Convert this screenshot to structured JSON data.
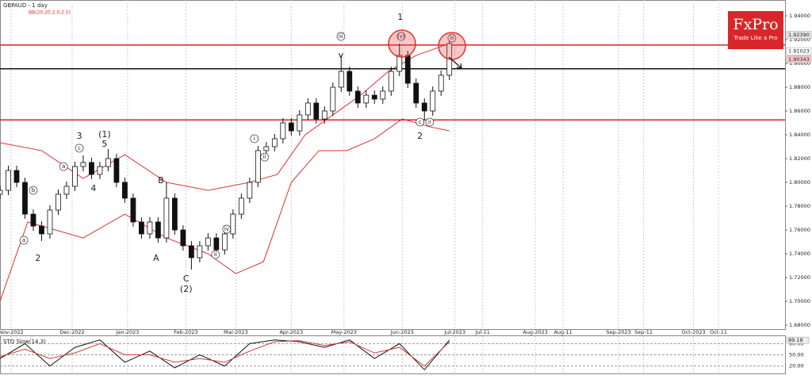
{
  "chart_data": {
    "type": "candlestick",
    "title": "GBPAUD - 1 day",
    "subtitle": "BB(20,20,2,0,2.0)",
    "logo": {
      "name": "FxPro",
      "tagline": "Trade Like a Pro",
      "color": "#d9262a"
    },
    "xlim": [
      0,
      283
    ],
    "ylim": [
      1.6767,
      1.9533
    ],
    "grid": "x",
    "xticks": [
      {
        "value": 4,
        "label": "Nov-2022"
      },
      {
        "value": 26,
        "label": "Dec-2022"
      },
      {
        "value": 46,
        "label": "Jan-2023"
      },
      {
        "value": 67,
        "label": "Feb-2023"
      },
      {
        "value": 85,
        "label": "Mar-2023"
      },
      {
        "value": 105,
        "label": "Apr-2023"
      },
      {
        "value": 124,
        "label": "May-2023"
      },
      {
        "value": 145,
        "label": "Jun-2023"
      },
      {
        "value": 164,
        "label": "Jul-2023"
      },
      {
        "value": 174,
        "label": "Jul-11"
      },
      {
        "value": 193,
        "label": "Aug-2023"
      },
      {
        "value": 203,
        "label": "Aug-11"
      },
      {
        "value": 223,
        "label": "Sep-2023"
      },
      {
        "value": 232,
        "label": "Sep-11"
      },
      {
        "value": 250,
        "label": "Oct-2023"
      },
      {
        "value": 259,
        "label": "Oct-11"
      }
    ],
    "yticks": [
      {
        "value": 1.94,
        "label": "1.94000"
      },
      {
        "value": 1.92,
        "label": "1.92000"
      },
      {
        "value": 1.9,
        "label": "1.90000"
      },
      {
        "value": 1.88,
        "label": "1.88000"
      },
      {
        "value": 1.86,
        "label": "1.86000"
      },
      {
        "value": 1.84,
        "label": "1.84000"
      },
      {
        "value": 1.82,
        "label": "1.82000"
      },
      {
        "value": 1.8,
        "label": "1.80000"
      },
      {
        "value": 1.78,
        "label": "1.78000"
      },
      {
        "value": 1.76,
        "label": "1.76000"
      },
      {
        "value": 1.74,
        "label": "1.74000"
      },
      {
        "value": 1.72,
        "label": "1.72000"
      },
      {
        "value": 1.7,
        "label": "1.70000"
      },
      {
        "value": 1.68,
        "label": "1.68000"
      }
    ],
    "x": [
      0,
      3,
      6,
      9,
      12,
      15,
      18,
      21,
      24,
      27,
      30,
      33,
      36,
      39,
      42,
      45,
      48,
      51,
      54,
      57,
      60,
      63,
      66,
      69,
      72,
      75,
      78,
      81,
      84,
      87,
      90,
      93,
      96,
      99,
      102,
      105,
      108,
      111,
      114,
      117,
      120,
      123,
      126,
      129,
      132,
      135,
      138,
      141,
      144,
      147,
      150,
      153,
      156,
      159,
      162
    ],
    "open": [
      1.79,
      1.7933,
      1.81,
      1.8,
      1.7733,
      1.7633,
      1.7567,
      1.7767,
      1.79,
      1.7967,
      1.8133,
      1.8167,
      1.8067,
      1.8133,
      1.82,
      1.8,
      1.7867,
      1.7667,
      1.7567,
      1.7667,
      1.7533,
      1.7867,
      1.76,
      1.7467,
      1.7367,
      1.7467,
      1.7533,
      1.7433,
      1.7567,
      1.7733,
      1.7867,
      1.8,
      1.8267,
      1.83,
      1.8367,
      1.85,
      1.8433,
      1.8567,
      1.8667,
      1.8533,
      1.86,
      1.88,
      1.8933,
      1.8767,
      1.8667,
      1.8733,
      1.87,
      1.8767,
      1.8933,
      1.9067,
      1.8833,
      1.8667,
      1.86,
      1.8767,
      1.89
    ],
    "high": [
      1.7973,
      1.814,
      1.814,
      1.804,
      1.7773,
      1.7673,
      1.7807,
      1.794,
      1.8007,
      1.8173,
      1.8227,
      1.8207,
      1.8173,
      1.828,
      1.824,
      1.804,
      1.7907,
      1.7707,
      1.7707,
      1.7707,
      1.8,
      1.7907,
      1.764,
      1.7507,
      1.7507,
      1.7573,
      1.7573,
      1.7607,
      1.7773,
      1.7907,
      1.804,
      1.8307,
      1.834,
      1.8407,
      1.854,
      1.854,
      1.8607,
      1.8707,
      1.8707,
      1.864,
      1.884,
      1.9067,
      1.8973,
      1.8807,
      1.8773,
      1.8773,
      1.8807,
      1.8973,
      1.9167,
      1.9107,
      1.8873,
      1.8707,
      1.8807,
      1.894,
      1.9239
    ],
    "low": [
      1.786,
      1.7893,
      1.796,
      1.7693,
      1.7593,
      1.7507,
      1.7527,
      1.7727,
      1.786,
      1.7927,
      1.8093,
      1.8027,
      1.8027,
      1.8093,
      1.796,
      1.7827,
      1.7627,
      1.7527,
      1.7527,
      1.7493,
      1.7493,
      1.756,
      1.7427,
      1.7267,
      1.7327,
      1.7427,
      1.7393,
      1.7393,
      1.7527,
      1.7693,
      1.7827,
      1.796,
      1.8227,
      1.826,
      1.8327,
      1.8393,
      1.8393,
      1.8527,
      1.8493,
      1.8493,
      1.856,
      1.876,
      1.8727,
      1.8627,
      1.8627,
      1.866,
      1.866,
      1.8727,
      1.8893,
      1.8793,
      1.8627,
      1.8527,
      1.856,
      1.8727,
      1.886
    ],
    "close": [
      1.7933,
      1.81,
      1.8,
      1.7733,
      1.7633,
      1.7567,
      1.7767,
      1.79,
      1.7967,
      1.8133,
      1.8167,
      1.8067,
      1.8133,
      1.82,
      1.8,
      1.7867,
      1.7667,
      1.7567,
      1.7667,
      1.7533,
      1.7867,
      1.76,
      1.7467,
      1.7367,
      1.7467,
      1.7533,
      1.7433,
      1.7567,
      1.7733,
      1.7867,
      1.8,
      1.8267,
      1.83,
      1.8367,
      1.85,
      1.8433,
      1.8567,
      1.8667,
      1.8533,
      1.86,
      1.88,
      1.8933,
      1.8767,
      1.8667,
      1.8733,
      1.87,
      1.8767,
      1.8933,
      1.9067,
      1.8833,
      1.8667,
      1.86,
      1.8767,
      1.89,
      1.9167
    ],
    "up_color": "#ffffff",
    "down_color": "#111111",
    "bands": [
      {
        "color": "#e03030",
        "x": [
          0,
          15,
          30,
          45,
          60,
          75,
          90,
          100,
          110,
          120,
          130,
          140,
          150,
          162
        ],
        "values": [
          1.8333,
          1.8267,
          1.8033,
          1.8233,
          1.8,
          1.7933,
          1.8,
          1.8067,
          1.84,
          1.8567,
          1.8733,
          1.8933,
          1.9067,
          1.9167
        ]
      },
      {
        "color": "#e03030",
        "x": [
          0,
          10,
          30,
          45,
          60,
          75,
          85,
          95,
          105,
          115,
          125,
          135,
          145,
          155,
          162
        ],
        "values": [
          1.7,
          1.7667,
          1.7533,
          1.7733,
          1.7533,
          1.74,
          1.7233,
          1.7333,
          1.8,
          1.8267,
          1.8267,
          1.8367,
          1.8533,
          1.8467,
          1.8433
        ]
      }
    ],
    "levels": [
      {
        "value": 1.9155,
        "color": "#dd1f1f"
      },
      {
        "value": 1.8955,
        "color": "#111111"
      },
      {
        "value": 1.8525,
        "color": "#dd1f1f"
      }
    ],
    "price_tags": [
      {
        "value": 1.9239,
        "label": "1.92390",
        "color": "#e6e6e6"
      },
      {
        "value": 1.91023,
        "label": "1.91023",
        "color": "#ffffff"
      },
      {
        "value": 1.90343,
        "label": "1.90343",
        "color": "#f7c9c9"
      }
    ],
    "annotations": [
      {
        "text": "3",
        "x": 28.6,
        "y": 1.8387
      },
      {
        "text": "(1)",
        "x": 37.7,
        "y": 1.84
      },
      {
        "text": "5",
        "x": 37.7,
        "y": 1.832
      },
      {
        "text": "4",
        "x": 33.7,
        "y": 1.7947
      },
      {
        "text": "2",
        "x": 13.7,
        "y": 1.736
      },
      {
        "text": "B",
        "x": 58,
        "y": 1.8013
      },
      {
        "text": "A",
        "x": 56.3,
        "y": 1.736
      },
      {
        "text": "C",
        "x": 67.1,
        "y": 1.7187
      },
      {
        "text": "(2)",
        "x": 67.1,
        "y": 1.71
      },
      {
        "text": "1",
        "x": 144.3,
        "y": 1.9387
      },
      {
        "text": "2",
        "x": 151.4,
        "y": 1.8387
      },
      {
        "text": "(v)",
        "x": 144.6,
        "y": 1.9227,
        "circled": true
      },
      {
        "text": "iii",
        "x": 122.9,
        "y": 1.9227,
        "circled": true
      },
      {
        "text": "v",
        "x": 122.9,
        "y": 1.9067
      },
      {
        "text": "c",
        "x": 28.6,
        "y": 1.8287,
        "circled": true
      },
      {
        "text": "b",
        "x": 12,
        "y": 1.7933,
        "circled": true
      },
      {
        "text": "a",
        "x": 8.6,
        "y": 1.7513,
        "circled": true
      },
      {
        "text": "a",
        "x": 22.9,
        "y": 1.8133,
        "circled": true
      },
      {
        "text": "i",
        "x": 91.7,
        "y": 1.8367,
        "circled": true
      },
      {
        "text": "ii",
        "x": 95.4,
        "y": 1.8213,
        "circled": true
      },
      {
        "text": "iv",
        "x": 81.7,
        "y": 1.7607,
        "circled": true
      },
      {
        "text": "ii",
        "x": 77.7,
        "y": 1.7393,
        "circled": true
      },
      {
        "text": "iii",
        "x": 162.9,
        "y": 1.9213,
        "circled": true
      },
      {
        "text": "ii",
        "x": 154.9,
        "y": 1.8507,
        "circled": true
      },
      {
        "text": "c",
        "x": 151.4,
        "y": 1.8507,
        "circled": true
      }
    ],
    "stochastic": {
      "label": "STO Slow(14,3)",
      "ylim": [
        0,
        100
      ],
      "yticks": [
        {
          "value": 80,
          "label": "80.00"
        },
        {
          "value": 50,
          "label": "50.00"
        },
        {
          "value": 20,
          "label": "20.00"
        }
      ],
      "current": {
        "value": 89.18,
        "label": "89.18"
      },
      "series": [
        {
          "color": "#111111",
          "x": [
            0,
            9,
            18,
            27,
            36,
            45,
            54,
            63,
            72,
            81,
            90,
            99,
            108,
            117,
            126,
            135,
            144,
            153,
            162
          ],
          "values": [
            40,
            80,
            20,
            70,
            90,
            30,
            60,
            15,
            50,
            20,
            80,
            90,
            85,
            70,
            90,
            40,
            80,
            10,
            89.18
          ]
        },
        {
          "color": "#d23a3a",
          "x": [
            0,
            9,
            18,
            27,
            36,
            45,
            54,
            63,
            72,
            81,
            90,
            99,
            108,
            117,
            126,
            135,
            144,
            153,
            162
          ],
          "values": [
            45,
            65,
            40,
            55,
            80,
            50,
            50,
            30,
            40,
            30,
            60,
            85,
            88,
            75,
            85,
            55,
            70,
            20,
            85
          ]
        }
      ]
    }
  }
}
